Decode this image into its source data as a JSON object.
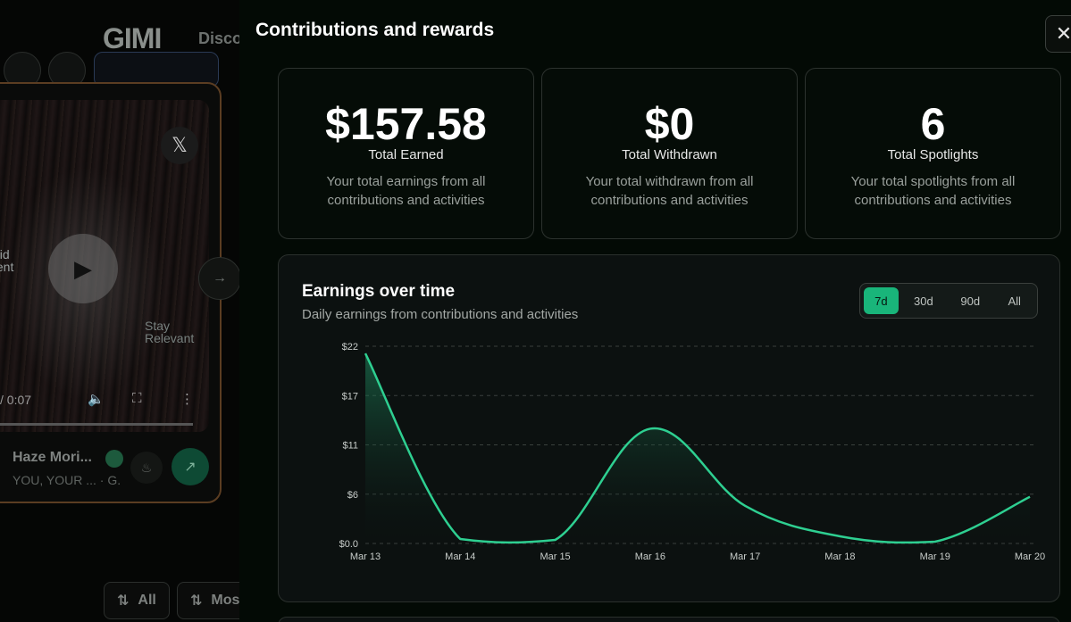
{
  "background": {
    "logo": "GIMI",
    "nav_discover": "Discov",
    "video": {
      "overlay_left": "uid\ntent",
      "overlay_right": "Stay\nRelevant",
      "time": "/ 0:07"
    },
    "creator": {
      "name": "Haze Mori...",
      "subtitle": "YOU, YOUR ...",
      "subtitle_extra": "· G."
    },
    "filters": [
      {
        "label": "All"
      },
      {
        "label": "Mos"
      }
    ]
  },
  "panel": {
    "title": "Contributions and rewards",
    "stats": [
      {
        "value": "$157.58",
        "label": "Total Earned",
        "description": "Your total earnings from all contributions and activities"
      },
      {
        "value": "$0",
        "label": "Total Withdrawn",
        "description": "Your total withdrawn from all contributions and activities"
      },
      {
        "value": "6",
        "label": "Total Spotlights",
        "description": "Your total spotlights from all contributions and activities"
      }
    ],
    "chart": {
      "title": "Earnings over time",
      "subtitle": "Daily earnings from contributions and activities",
      "ranges": [
        "7d",
        "30d",
        "90d",
        "All"
      ],
      "active_range": "7d"
    }
  },
  "chart_data": {
    "type": "area",
    "title": "Earnings over time",
    "x": [
      "Mar 13",
      "Mar 14",
      "Mar 15",
      "Mar 16",
      "Mar 17",
      "Mar 18",
      "Mar 19",
      "Mar 20"
    ],
    "values": [
      21.2,
      0.5,
      0.4,
      12.8,
      4.2,
      0.8,
      0.2,
      5.2
    ],
    "y_ticks": [
      "$0.0",
      "$6",
      "$11",
      "$17",
      "$22"
    ],
    "y_tick_values": [
      0,
      5.5,
      11,
      16.5,
      22
    ],
    "ylim": [
      0,
      22
    ],
    "line_color": "#2ecf91",
    "grid": true
  }
}
